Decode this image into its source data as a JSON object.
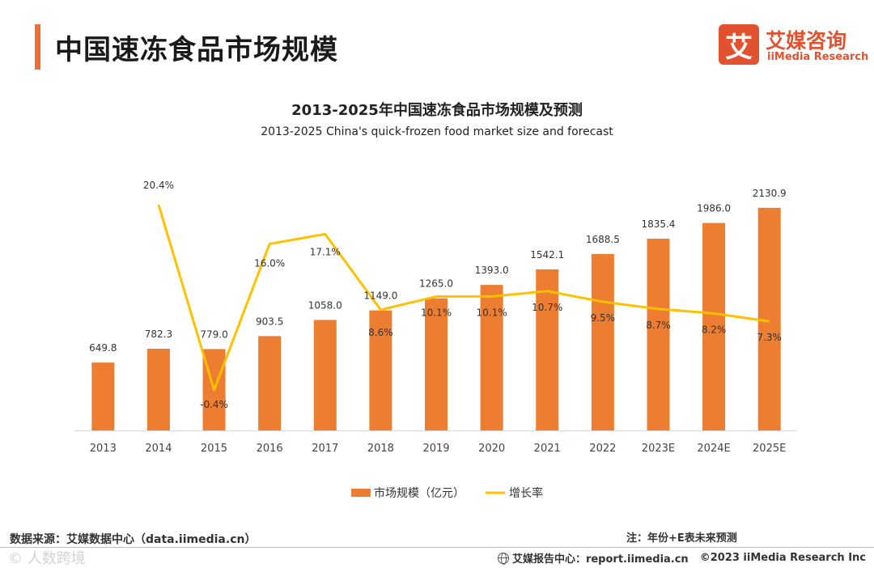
{
  "header": {
    "title": "中国速冻食品市场规模",
    "accent_color": "#ED6D35"
  },
  "logo": {
    "glyph": "艾",
    "name_cn": "艾媒咨询",
    "name_en": "iiMedia Research",
    "color": "#E2522E"
  },
  "chart_data": {
    "type": "bar",
    "title": "2013-2025年中国速冻食品市场规模及预测",
    "subtitle": "2013-2025 China's quick-frozen food market size and forecast",
    "categories": [
      "2013",
      "2014",
      "2015",
      "2016",
      "2017",
      "2018",
      "2019",
      "2020",
      "2021",
      "2022",
      "2023E",
      "2024E",
      "2025E"
    ],
    "series": [
      {
        "name": "市场规模（亿元）",
        "type": "bar",
        "color": "#ED7D31",
        "values": [
          649.8,
          782.3,
          779.0,
          903.5,
          1058.0,
          1149.0,
          1265.0,
          1393.0,
          1542.1,
          1688.5,
          1835.4,
          1986.0,
          2130.9
        ],
        "labels": [
          "649.8",
          "782.3",
          "779.0",
          "903.5",
          "1058.0",
          "1149.0",
          "1265.0",
          "1393.0",
          "1542.1",
          "1688.5",
          "1835.4",
          "1986.0",
          "2130.9"
        ]
      },
      {
        "name": "增长率",
        "type": "line",
        "color": "#FFC000",
        "values": [
          null,
          20.4,
          -0.4,
          16.0,
          17.1,
          8.6,
          10.1,
          10.1,
          10.7,
          9.5,
          8.7,
          8.2,
          7.3
        ],
        "labels": [
          "",
          "20.4%",
          "-0.4%",
          "16.0%",
          "17.1%",
          "8.6%",
          "10.1%",
          "10.1%",
          "10.7%",
          "9.5%",
          "8.7%",
          "8.2%",
          "7.3%"
        ]
      }
    ],
    "ylim_bar": [
      0,
      2300
    ],
    "ylim_line": [
      -2,
      22
    ],
    "grid": false,
    "legend_position": "bottom"
  },
  "footer": {
    "source": "数据来源：艾媒数据中心（data.iimedia.cn）",
    "note": "注：年份+E表未来预测",
    "report": "艾媒报告中心：report.iimedia.cn",
    "copyright": "©2023  iiMedia Research  Inc",
    "watermark": "© 人数跨境"
  }
}
